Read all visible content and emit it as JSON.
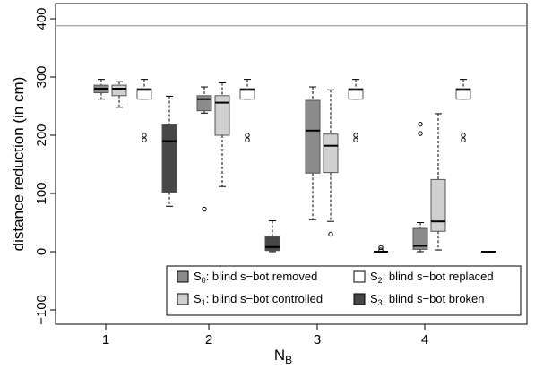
{
  "chart_data": {
    "type": "box",
    "xlabel": "N",
    "xlabel_sub": "B",
    "ylabel": "distance reduction (in cm)",
    "ylim": [
      -120,
      410
    ],
    "yticks": [
      -100,
      0,
      100,
      200,
      300,
      400
    ],
    "ytick_labels": [
      "−100",
      "0",
      "100",
      "200",
      "300",
      "400"
    ],
    "categories": [
      "1",
      "2",
      "3",
      "4"
    ],
    "reference_line": 388,
    "legend_position": "bottom-right",
    "series": [
      {
        "name_main": "S",
        "name_sub": "0",
        "name_rest": ": blind s−bot removed",
        "fill": "#8c8c8c",
        "boxes": [
          {
            "whisker_low": 262,
            "q1": 273,
            "median": 280,
            "q3": 286,
            "whisker_high": 296,
            "outliers": []
          },
          {
            "whisker_low": 238,
            "q1": 242,
            "median": 262,
            "q3": 268,
            "whisker_high": 283,
            "outliers": [
              73
            ]
          },
          {
            "whisker_low": 55,
            "q1": 135,
            "median": 208,
            "q3": 260,
            "whisker_high": 283,
            "outliers": []
          },
          {
            "whisker_low": 0,
            "q1": 4,
            "median": 10,
            "q3": 40,
            "whisker_high": 50,
            "outliers": [
              203,
              219
            ]
          }
        ]
      },
      {
        "name_main": "S",
        "name_sub": "1",
        "name_rest": ": blind s−bot controlled",
        "fill": "#d0d0d0",
        "boxes": [
          {
            "whisker_low": 248,
            "q1": 268,
            "median": 280,
            "q3": 286,
            "whisker_high": 292,
            "outliers": []
          },
          {
            "whisker_low": 112,
            "q1": 200,
            "median": 256,
            "q3": 268,
            "whisker_high": 290,
            "outliers": []
          },
          {
            "whisker_low": 52,
            "q1": 136,
            "median": 182,
            "q3": 202,
            "whisker_high": 278,
            "outliers": [
              30
            ]
          },
          {
            "whisker_low": 3,
            "q1": 35,
            "median": 52,
            "q3": 124,
            "whisker_high": 237,
            "outliers": []
          }
        ]
      },
      {
        "name_main": "S",
        "name_sub": "2",
        "name_rest": ": blind s−bot replaced",
        "fill": "#ffffff",
        "boxes": [
          {
            "whisker_low": 262,
            "q1": 262,
            "median": 278,
            "q3": 280,
            "whisker_high": 296,
            "outliers": [
              192,
              200
            ]
          },
          {
            "whisker_low": 262,
            "q1": 262,
            "median": 278,
            "q3": 280,
            "whisker_high": 296,
            "outliers": [
              192,
              200
            ]
          },
          {
            "whisker_low": 262,
            "q1": 262,
            "median": 278,
            "q3": 280,
            "whisker_high": 296,
            "outliers": [
              192,
              200
            ]
          },
          {
            "whisker_low": 262,
            "q1": 262,
            "median": 278,
            "q3": 280,
            "whisker_high": 296,
            "outliers": [
              192,
              200
            ]
          }
        ]
      },
      {
        "name_main": "S",
        "name_sub": "3",
        "name_rest": ": blind s−bot broken",
        "fill": "#474747",
        "boxes": [
          {
            "whisker_low": 78,
            "q1": 102,
            "median": 190,
            "q3": 218,
            "whisker_high": 267,
            "outliers": []
          },
          {
            "whisker_low": 0,
            "q1": 2,
            "median": 8,
            "q3": 26,
            "whisker_high": 53,
            "outliers": []
          },
          {
            "whisker_low": 0,
            "q1": 0,
            "median": 0,
            "q3": 0,
            "whisker_high": 0,
            "outliers": [
              3,
              7
            ]
          },
          {
            "whisker_low": 0,
            "q1": 0,
            "median": 0,
            "q3": 0,
            "whisker_high": 0,
            "outliers": []
          }
        ]
      }
    ]
  }
}
